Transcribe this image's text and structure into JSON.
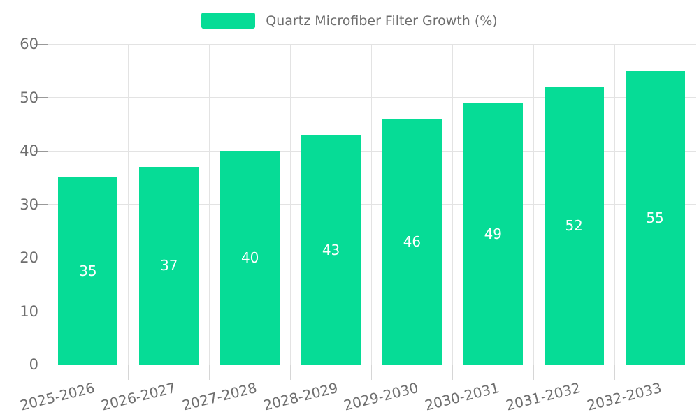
{
  "legend": {
    "label": "Quartz Microfiber Filter Growth (%)"
  },
  "colors": {
    "bar": "#06dc96",
    "axis_text": "#6e6e6e",
    "axis_line": "#999999",
    "grid_line": "#e3e3e3",
    "x_tick_line": "#d6d6d6",
    "value_label": "#ffffff",
    "background": "#ffffff"
  },
  "chart_data": {
    "type": "bar",
    "title": "Quartz Microfiber Filter Growth (%)",
    "legend_position": "top",
    "grid": "both",
    "categories": [
      "2025-2026",
      "2026-2027",
      "2027-2028",
      "2028-2029",
      "2029-2030",
      "2030-2031",
      "2031-2032",
      "2032-2033"
    ],
    "series": [
      {
        "name": "Quartz Microfiber Filter Growth (%)",
        "values": [
          35,
          37,
          40,
          43,
          46,
          49,
          52,
          55
        ]
      }
    ],
    "value_labels": "inside-center",
    "xlabel": "",
    "ylabel": "",
    "ylim": [
      0,
      60
    ],
    "yticks": [
      0,
      10,
      20,
      30,
      40,
      50,
      60
    ],
    "x_tick_rotation_deg": -14
  }
}
